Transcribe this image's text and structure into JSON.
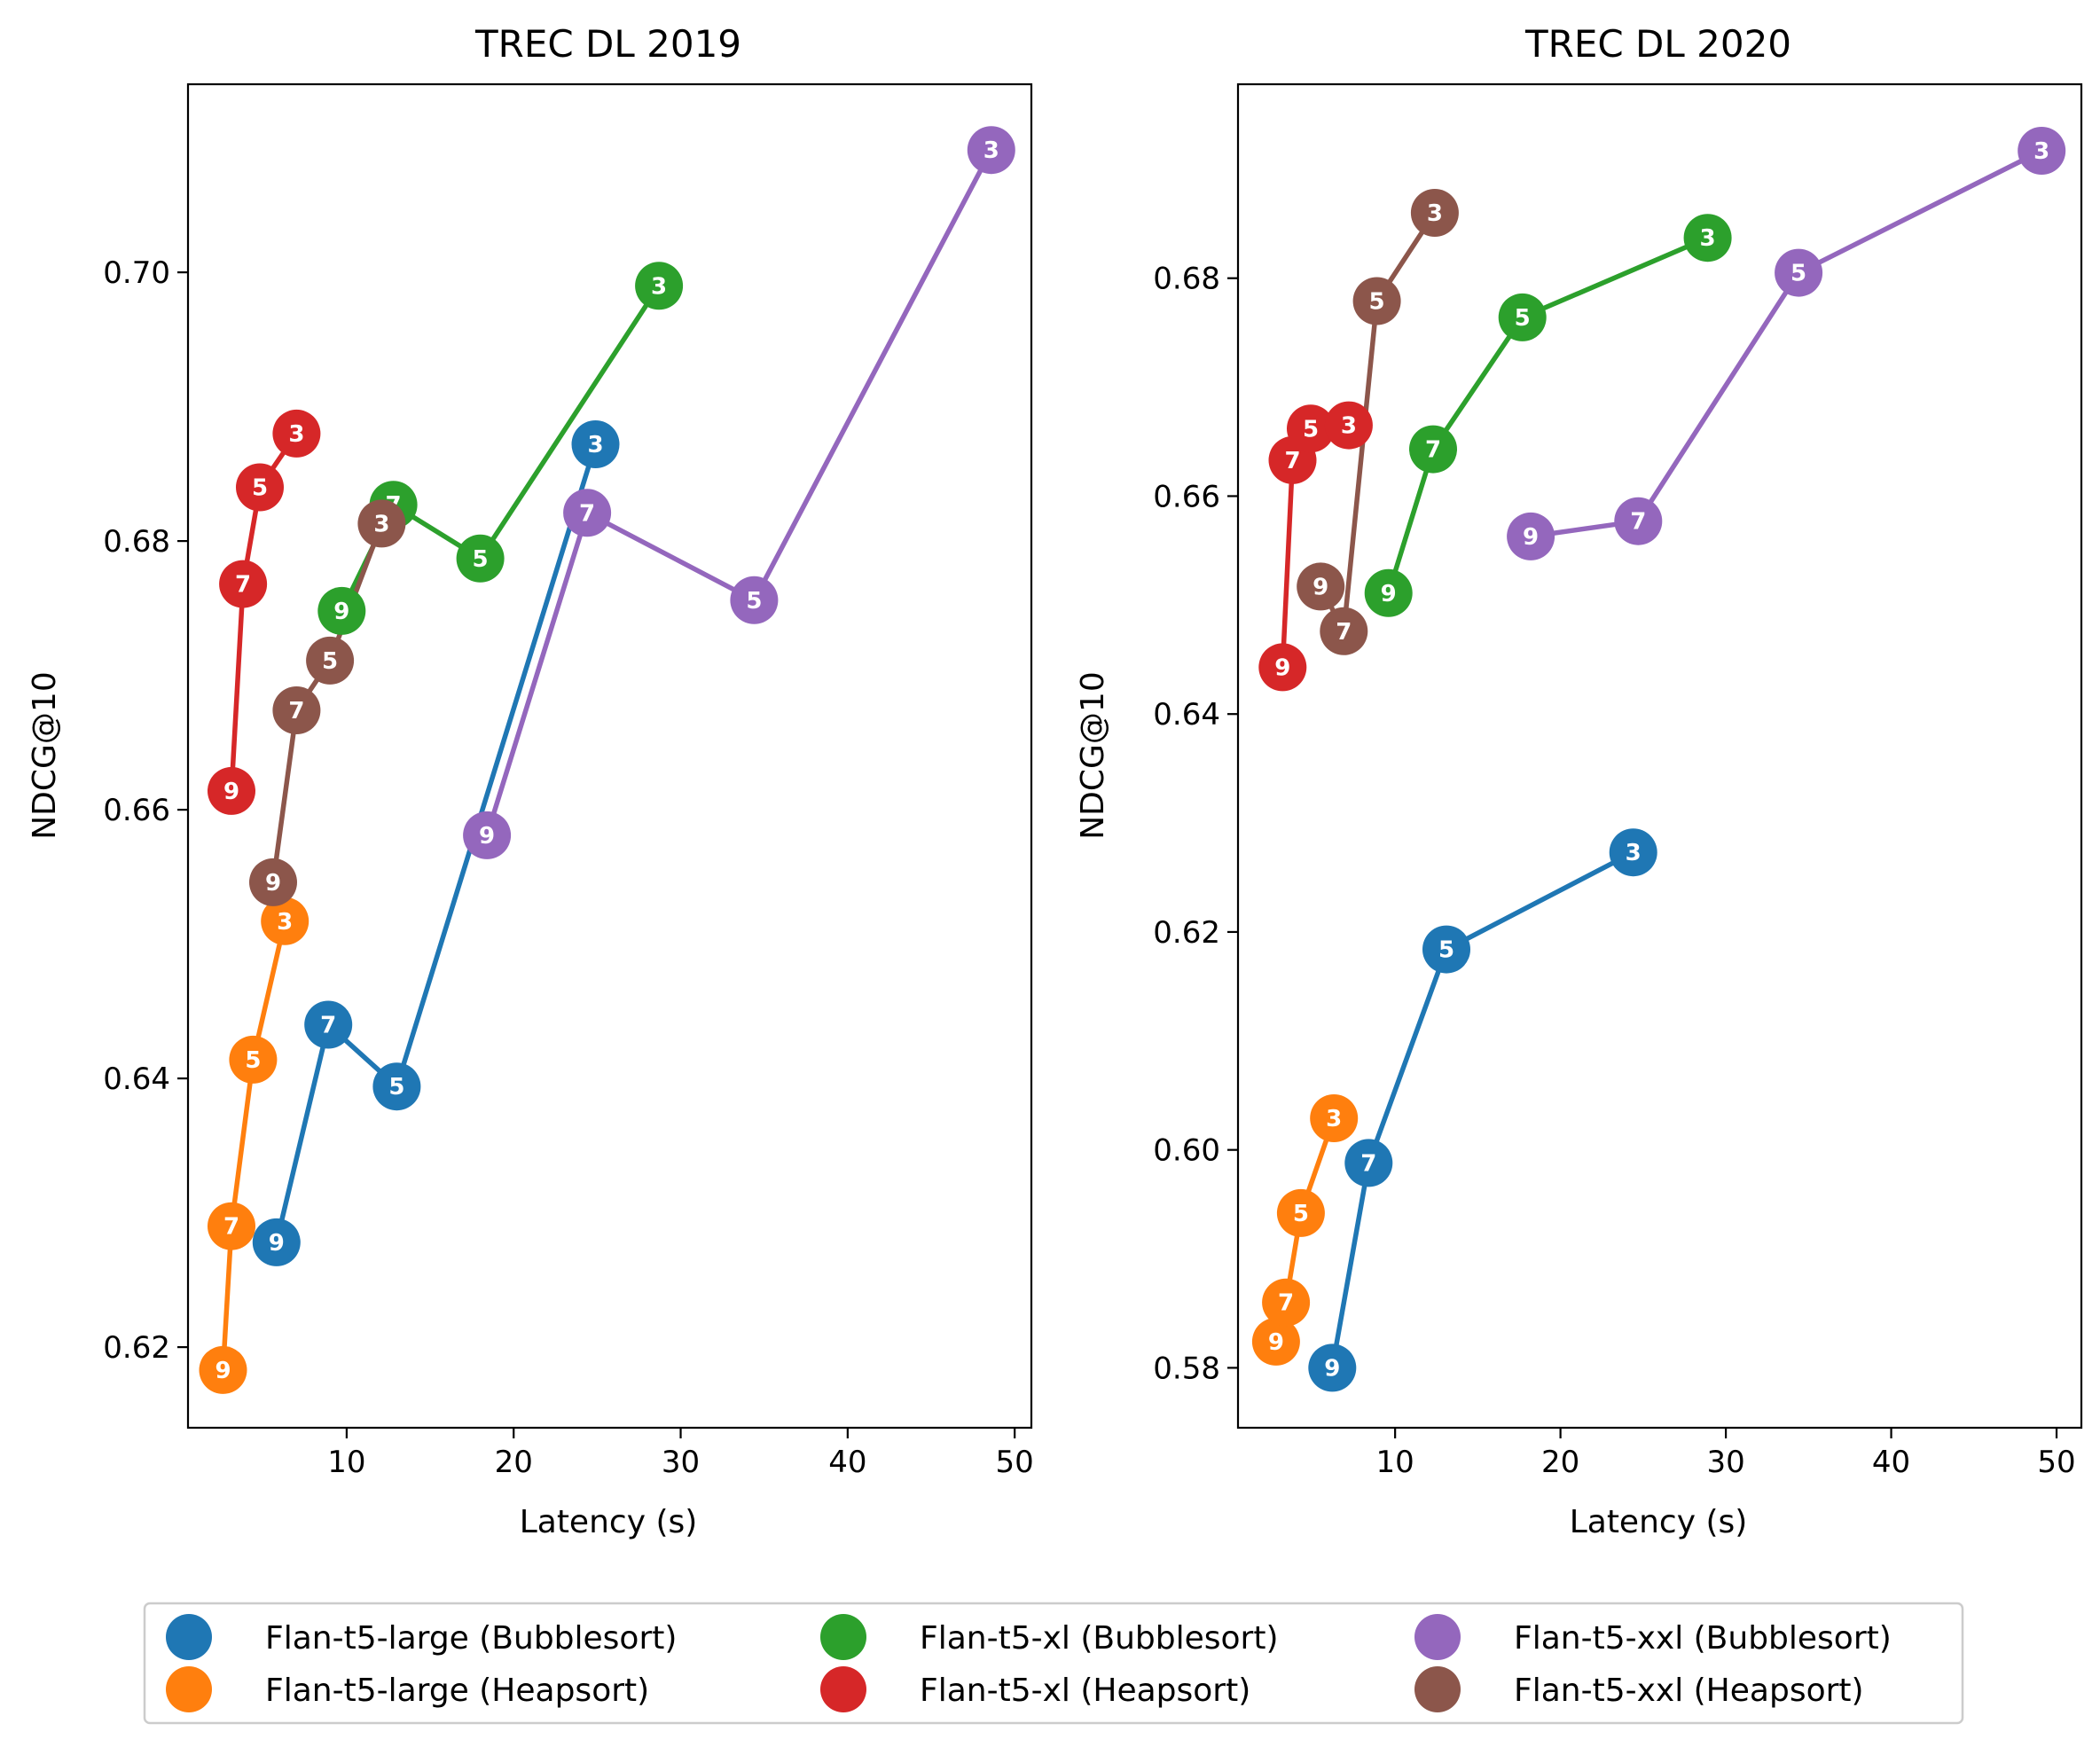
{
  "chart_data": [
    {
      "type": "scatter",
      "title": "TREC DL 2019",
      "xlabel": "Latency (s)",
      "ylabel": "NDCG@10",
      "xlim": [
        0.5,
        51.0
      ],
      "ylim": [
        0.614,
        0.714
      ],
      "xticks": [
        10,
        20,
        30,
        40,
        50
      ],
      "yticks": [
        0.62,
        0.64,
        0.66,
        0.68,
        0.7
      ],
      "yformat": 2,
      "grid": false,
      "series": [
        {
          "name": "Flan-t5-large (Bubblesort)",
          "color": "#1f77b4",
          "points": [
            {
              "label": "9",
              "x": 5.8,
              "y": 0.6278
            },
            {
              "label": "7",
              "x": 8.9,
              "y": 0.644
            },
            {
              "label": "5",
              "x": 13.0,
              "y": 0.6394
            },
            {
              "label": "3",
              "x": 24.9,
              "y": 0.6872
            }
          ]
        },
        {
          "name": "Flan-t5-large (Heapsort)",
          "color": "#ff7f0e",
          "points": [
            {
              "label": "9",
              "x": 2.6,
              "y": 0.6183
            },
            {
              "label": "7",
              "x": 3.1,
              "y": 0.629
            },
            {
              "label": "5",
              "x": 4.4,
              "y": 0.6414
            },
            {
              "label": "3",
              "x": 6.3,
              "y": 0.6517
            }
          ]
        },
        {
          "name": "Flan-t5-xl (Bubblesort)",
          "color": "#2ca02c",
          "points": [
            {
              "label": "9",
              "x": 9.7,
              "y": 0.6748
            },
            {
              "label": "7",
              "x": 12.8,
              "y": 0.6827
            },
            {
              "label": "5",
              "x": 18.0,
              "y": 0.6787
            },
            {
              "label": "3",
              "x": 28.7,
              "y": 0.699
            }
          ]
        },
        {
          "name": "Flan-t5-xl (Heapsort)",
          "color": "#d62728",
          "points": [
            {
              "label": "9",
              "x": 3.1,
              "y": 0.6614
            },
            {
              "label": "7",
              "x": 3.8,
              "y": 0.6768
            },
            {
              "label": "5",
              "x": 4.8,
              "y": 0.684
            },
            {
              "label": "3",
              "x": 7.0,
              "y": 0.688
            }
          ]
        },
        {
          "name": "Flan-t5-xxl (Bubblesort)",
          "color": "#9467bd",
          "points": [
            {
              "label": "9",
              "x": 18.4,
              "y": 0.6581
            },
            {
              "label": "7",
              "x": 24.4,
              "y": 0.6821
            },
            {
              "label": "5",
              "x": 34.4,
              "y": 0.6756
            },
            {
              "label": "3",
              "x": 48.6,
              "y": 0.7091
            }
          ]
        },
        {
          "name": "Flan-t5-xxl (Heapsort)",
          "color": "#8c564b",
          "points": [
            {
              "label": "9",
              "x": 5.6,
              "y": 0.6546
            },
            {
              "label": "7",
              "x": 7.0,
              "y": 0.6674
            },
            {
              "label": "5",
              "x": 9.0,
              "y": 0.6711
            },
            {
              "label": "3",
              "x": 12.1,
              "y": 0.6813
            }
          ]
        }
      ]
    },
    {
      "type": "scatter",
      "title": "TREC DL 2020",
      "xlabel": "Latency (s)",
      "ylabel": "NDCG@10",
      "xlim": [
        0.5,
        51.5
      ],
      "ylim": [
        0.5745,
        0.6978
      ],
      "xticks": [
        10,
        20,
        30,
        40,
        50
      ],
      "yticks": [
        0.58,
        0.6,
        0.62,
        0.64,
        0.66,
        0.68
      ],
      "yformat": 2,
      "grid": false,
      "series": [
        {
          "name": "Flan-t5-large (Bubblesort)",
          "color": "#1f77b4",
          "points": [
            {
              "label": "9",
              "x": 6.2,
              "y": 0.58
            },
            {
              "label": "7",
              "x": 8.4,
              "y": 0.5988
            },
            {
              "label": "5",
              "x": 13.1,
              "y": 0.6184
            },
            {
              "label": "3",
              "x": 24.4,
              "y": 0.6273
            }
          ]
        },
        {
          "name": "Flan-t5-large (Heapsort)",
          "color": "#ff7f0e",
          "points": [
            {
              "label": "9",
              "x": 2.8,
              "y": 0.5824
            },
            {
              "label": "7",
              "x": 3.4,
              "y": 0.586
            },
            {
              "label": "5",
              "x": 4.3,
              "y": 0.5942
            },
            {
              "label": "3",
              "x": 6.3,
              "y": 0.6029
            }
          ]
        },
        {
          "name": "Flan-t5-xl (Bubblesort)",
          "color": "#2ca02c",
          "points": [
            {
              "label": "9",
              "x": 9.6,
              "y": 0.6511
            },
            {
              "label": "7",
              "x": 12.3,
              "y": 0.6643
            },
            {
              "label": "5",
              "x": 17.7,
              "y": 0.6764
            },
            {
              "label": "3",
              "x": 28.9,
              "y": 0.6837
            }
          ]
        },
        {
          "name": "Flan-t5-xl (Heapsort)",
          "color": "#d62728",
          "points": [
            {
              "label": "9",
              "x": 3.2,
              "y": 0.6443
            },
            {
              "label": "7",
              "x": 3.8,
              "y": 0.6633
            },
            {
              "label": "5",
              "x": 4.9,
              "y": 0.6662
            },
            {
              "label": "3",
              "x": 7.2,
              "y": 0.6665
            }
          ]
        },
        {
          "name": "Flan-t5-xxl (Bubblesort)",
          "color": "#9467bd",
          "points": [
            {
              "label": "9",
              "x": 18.2,
              "y": 0.6563
            },
            {
              "label": "7",
              "x": 24.7,
              "y": 0.6577
            },
            {
              "label": "5",
              "x": 34.4,
              "y": 0.6805
            },
            {
              "label": "3",
              "x": 49.1,
              "y": 0.6917
            }
          ]
        },
        {
          "name": "Flan-t5-xxl (Heapsort)",
          "color": "#8c564b",
          "points": [
            {
              "label": "9",
              "x": 5.5,
              "y": 0.6517
            },
            {
              "label": "7",
              "x": 6.9,
              "y": 0.6476
            },
            {
              "label": "5",
              "x": 8.9,
              "y": 0.6779
            },
            {
              "label": "3",
              "x": 12.4,
              "y": 0.686
            }
          ]
        }
      ]
    }
  ],
  "legend": {
    "placement": "bottom-center",
    "columns": 3,
    "items": [
      {
        "label": "Flan-t5-large (Bubblesort)",
        "color": "#1f77b4"
      },
      {
        "label": "Flan-t5-large (Heapsort)",
        "color": "#ff7f0e"
      },
      {
        "label": "Flan-t5-xl (Bubblesort)",
        "color": "#2ca02c"
      },
      {
        "label": "Flan-t5-xl (Heapsort)",
        "color": "#d62728"
      },
      {
        "label": "Flan-t5-xxl (Bubblesort)",
        "color": "#9467bd"
      },
      {
        "label": "Flan-t5-xxl (Heapsort)",
        "color": "#8c564b"
      }
    ]
  }
}
